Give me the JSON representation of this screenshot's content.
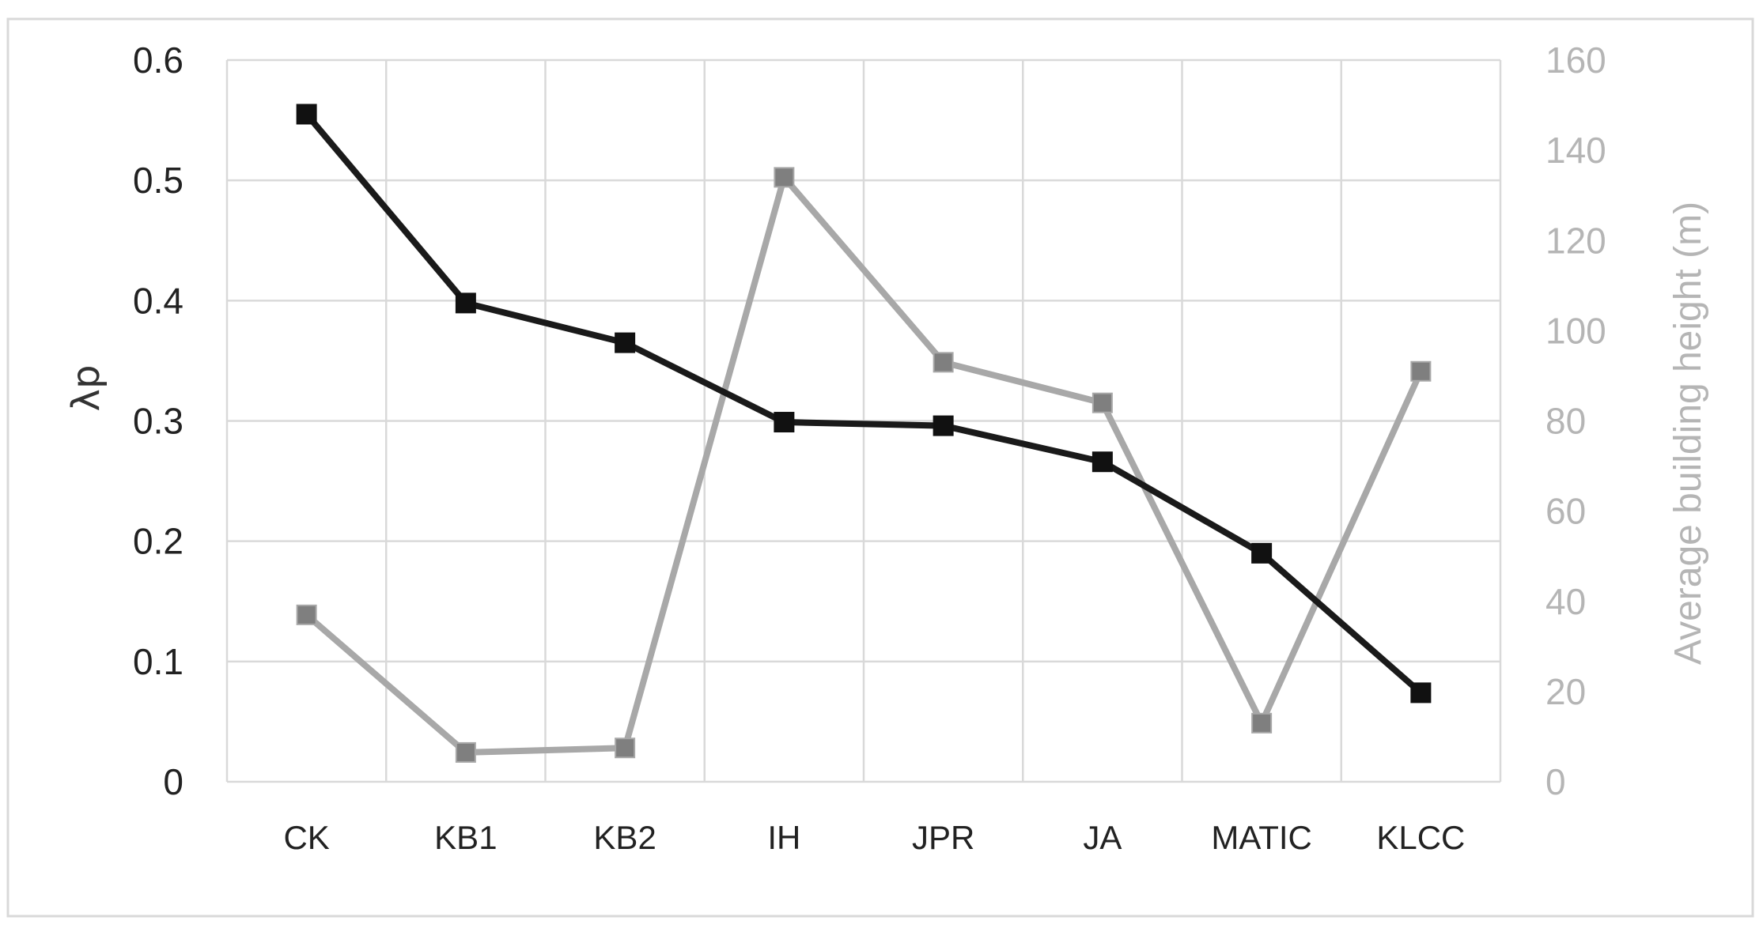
{
  "chart_data": {
    "type": "line",
    "categories": [
      "CK",
      "KB1",
      "KB2",
      "IH",
      "JPR",
      "JA",
      "MATIC",
      "KLCC"
    ],
    "series": [
      {
        "axis": "left",
        "color": "#1a1a1a",
        "values": [
          0.555,
          0.398,
          0.365,
          0.299,
          0.296,
          0.266,
          0.19,
          0.074
        ]
      },
      {
        "axis": "right",
        "color": "#a8a8a8",
        "values": [
          37,
          6.5,
          7.5,
          134,
          93,
          84,
          13,
          91
        ]
      }
    ],
    "ylabel": "λp",
    "y2label": "Average building height (m)",
    "ylim": [
      0,
      0.6
    ],
    "y2lim": [
      0,
      160
    ],
    "yticks": [
      "0",
      "0.1",
      "0.2",
      "0.3",
      "0.4",
      "0.5",
      "0.6"
    ],
    "y2ticks": [
      "0",
      "20",
      "40",
      "60",
      "80",
      "100",
      "120",
      "140",
      "160"
    ],
    "grid": true,
    "marker": "square",
    "legend": "none"
  }
}
